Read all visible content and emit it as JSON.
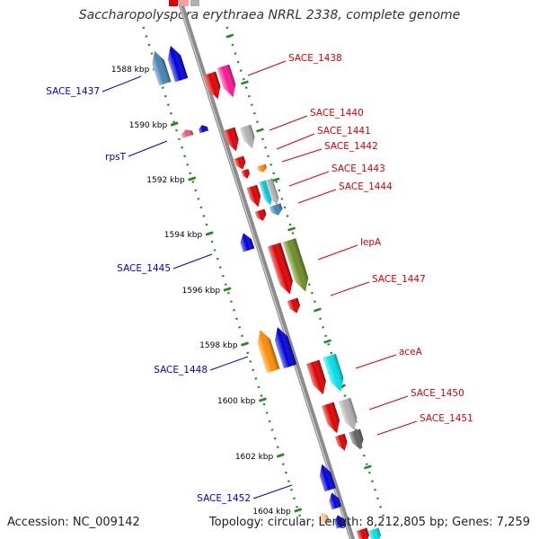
{
  "title": "Saccharopolyspora erythraea NRRL 2338, complete genome",
  "footer": {
    "accession": "Accession: NC_009142",
    "stats": "Topology: circular; Length: 8,212,805 bp; Genes: 7,259"
  },
  "colors": {
    "backbone": "#8c8c8c",
    "ruler": "#1f8a1f",
    "label_red": "#dd0000",
    "label_blue": "#0000cc"
  },
  "ticks": [
    "1588 kbp",
    "1590 kbp",
    "1592 kbp",
    "1594 kbp",
    "1596 kbp",
    "1598 kbp",
    "1600 kbp",
    "1602 kbp",
    "1604 kbp"
  ],
  "genes": [
    {
      "label": "SACE_1438",
      "side": "right",
      "color": "#ff1493",
      "strand": "forward"
    },
    {
      "label": "SACE_1440",
      "side": "right",
      "color": "#b0b0b0",
      "strand": "forward"
    },
    {
      "label": "SACE_1441",
      "side": "right",
      "color": "#e00000",
      "strand": "forward"
    },
    {
      "label": "SACE_1442",
      "side": "right",
      "color": "#ff8800",
      "strand": "forward"
    },
    {
      "label": "SACE_1443",
      "side": "right",
      "color": "#00c8d8",
      "strand": "forward"
    },
    {
      "label": "SACE_1444",
      "side": "right",
      "color": "#4682b4",
      "strand": "forward"
    },
    {
      "label": "lepA",
      "side": "right",
      "color": "#6b8e23",
      "strand": "forward"
    },
    {
      "label": "SACE_1447",
      "side": "right",
      "color": "#e00000",
      "strand": "forward"
    },
    {
      "label": "aceA",
      "side": "right",
      "color": "#00e0e8",
      "strand": "forward"
    },
    {
      "label": "SACE_1450",
      "side": "right",
      "color": "#b0b0b0",
      "strand": "forward"
    },
    {
      "label": "SACE_1451",
      "side": "right",
      "color": "#606060",
      "strand": "forward"
    },
    {
      "label": "SACE_1437",
      "side": "left",
      "color": "#4682b4",
      "strand": "reverse"
    },
    {
      "label": "rpsT",
      "side": "left",
      "color": "#e06070",
      "strand": "reverse"
    },
    {
      "label": "SACE_1445",
      "side": "left",
      "color": "#0000dd",
      "strand": "reverse"
    },
    {
      "label": "SACE_1448",
      "side": "left",
      "color": "#ff8c00",
      "strand": "reverse"
    },
    {
      "label": "SACE_1452",
      "side": "left",
      "color": "#0000dd",
      "strand": "reverse"
    }
  ]
}
